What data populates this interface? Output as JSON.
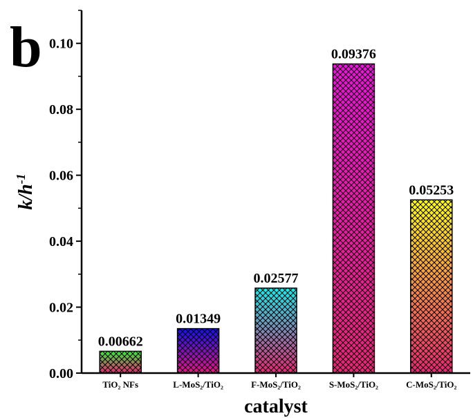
{
  "panel_label": "b",
  "chart_data": {
    "type": "bar",
    "categories": [
      "TiO₂ NFs",
      "L-MoS₂/TiO₂",
      "F-MoS₂/TiO₂",
      "S-MoS₂/TiO₂",
      "C-MoS₂/TiO₂"
    ],
    "values": [
      0.00662,
      0.01349,
      0.02577,
      0.09376,
      0.05253
    ],
    "data_labels": [
      "0.00662",
      "0.01349",
      "0.02577",
      "0.09376",
      "0.05253"
    ],
    "xlabel": "catalyst",
    "ylabel": "k/h-1",
    "ylabel_main": "k/h",
    "ylabel_sup": "-1",
    "ylim": [
      0,
      0.11
    ],
    "yticks": [
      0,
      0.02,
      0.04,
      0.06,
      0.08,
      0.1
    ],
    "ytick_labels": [
      "0.00",
      "0.02",
      "0.04",
      "0.06",
      "0.08",
      "0.10"
    ],
    "grid": false,
    "legend": "none",
    "bar_gradients": [
      {
        "top": "#33ee33",
        "bottom": "#ee2277"
      },
      {
        "top": "#1111ee",
        "bottom": "#ee1188"
      },
      {
        "top": "#11eeee",
        "bottom": "#ee2277"
      },
      {
        "top": "#ee11dd",
        "bottom": "#ee2277"
      },
      {
        "top": "#ffff11",
        "bottom": "#ee2277"
      }
    ]
  }
}
